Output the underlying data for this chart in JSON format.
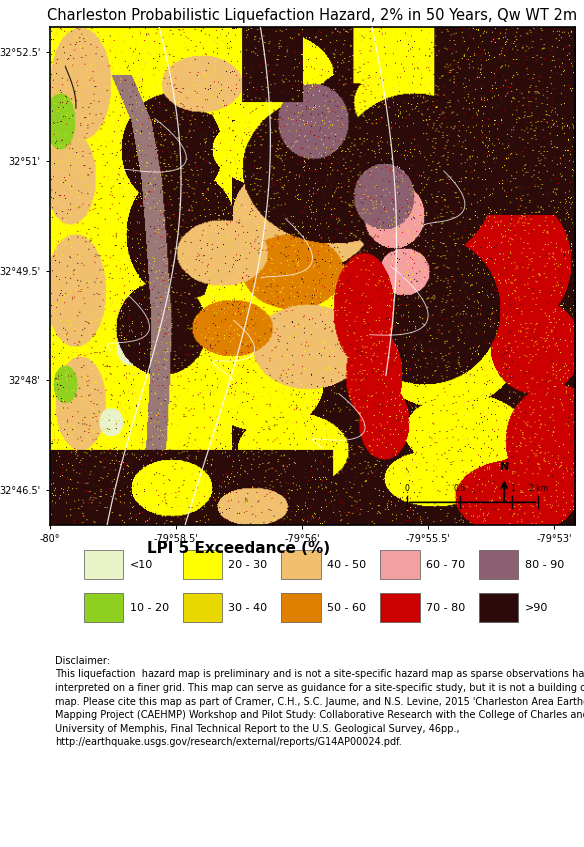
{
  "title": "Charleston Probabilistic Liquefaction Hazard, 2% in 50 Years, Qw WT 2m",
  "title_fontsize": 10.5,
  "legend_title": "LPI 5 Exceedance (%)",
  "legend_title_fontsize": 11,
  "legend_items_row1": [
    {
      "label": "<10",
      "color": "#e8f4c8"
    },
    {
      "label": "20 - 30",
      "color": "#ffff00"
    },
    {
      "label": "40 - 50",
      "color": "#f0c070"
    },
    {
      "label": "60 - 70",
      "color": "#f5a0a0"
    },
    {
      "label": "80 - 90",
      "color": "#8b6070"
    }
  ],
  "legend_items_row2": [
    {
      "label": "10 - 20",
      "color": "#90d020"
    },
    {
      "label": "30 - 40",
      "color": "#e8d800"
    },
    {
      "label": "50 - 60",
      "color": "#e08000"
    },
    {
      "label": "70 - 80",
      "color": "#cc0000"
    },
    {
      "label": ">90",
      "color": "#2b0a0a"
    }
  ],
  "disclaimer_text": "Disclaimer:\nThis liquefaction  hazard map is preliminary and is not a site-specific hazard map as sparse observations have been\ninterpreted on a finer grid. This map can serve as guidance for a site-specific study, but it is not a building code design\nmap. Please cite this map as part of Cramer, C.H., S.C. Jaume, and N.S. Levine, 2015 'Charleston Area Earthquake Hazard\nMapping Project (CAEHMP) Workshop and Pilot Study: Collaborative Research with the College of Charles and the\nUniversity of Memphis, Final Technical Report to the U.S. Geological Survey, 46pp.,\nhttp://earthquake.usgs.gov/research/external/reports/G14AP00024.pdf.",
  "disclaimer_fontsize": 7.0,
  "colors": {
    "very_light_green": "#e8f4c8",
    "bright_green": "#90d020",
    "bright_yellow": "#ffff00",
    "yellow2": "#e8d800",
    "tan": "#f0c070",
    "orange": "#e08000",
    "light_pink": "#f5a0a0",
    "red": "#cc0000",
    "dark_mauve": "#8b6070",
    "very_dark_brown": "#2b0a0a",
    "brown_dark": "#5a1a1a",
    "river_grey": "#9b7878"
  },
  "xtick_labels": [
    "-80°",
    "-79°58.5'",
    "-79°56'",
    "-79°55.5'",
    "-79°53'"
  ],
  "ytick_labels": [
    "32°52.5'",
    "32°51'",
    "32°49.5'",
    "32°48'",
    "32°46.5'"
  ],
  "fig_width": 5.84,
  "fig_height": 8.47,
  "fig_dpi": 100,
  "bg_color": "#ffffff"
}
